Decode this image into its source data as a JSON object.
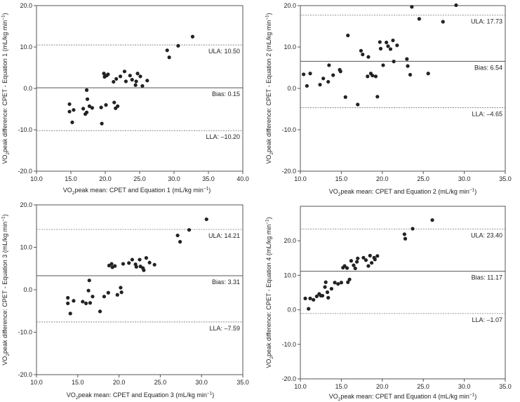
{
  "chart_data": [
    {
      "type": "scatter",
      "xlabel_pre": "VO",
      "xlabel_sub": "2",
      "xlabel_post": "peak mean: CPET and Equation 1 (mL/kg min",
      "xlabel_sup": "−1",
      "xlabel_end": ")",
      "ylabel_pre": "VO",
      "ylabel_sub": "2",
      "ylabel_post": "peak difference: CPET - Equation 1 (mL/kg min",
      "ylabel_sup": "−1",
      "ylabel_end": ")",
      "xlim": [
        10,
        40
      ],
      "ylim": [
        -20,
        20
      ],
      "x_ticks": [
        "10.0",
        "15.0",
        "20.0",
        "25.0",
        "30.0",
        "35.0",
        "40.0"
      ],
      "y_ticks": [
        "20.0",
        "10.0",
        "0.0",
        "-10.0",
        "-20.0"
      ],
      "ula": {
        "label": "ULA: 10.50",
        "value": 10.5
      },
      "bias": {
        "label": "Bias: 0.15",
        "value": 0.15
      },
      "lla": {
        "label": "LLA: –10.20",
        "value": -10.2
      },
      "points": [
        [
          14.8,
          -3.8
        ],
        [
          14.8,
          -5.6
        ],
        [
          15.2,
          -8.2
        ],
        [
          15.4,
          -5.2
        ],
        [
          16.8,
          -4.9
        ],
        [
          17.1,
          -6.2
        ],
        [
          17.3,
          -5.8
        ],
        [
          17.3,
          -0.4
        ],
        [
          17.4,
          -2.6
        ],
        [
          17.7,
          -4.3
        ],
        [
          18.1,
          -4.7
        ],
        [
          19.4,
          -4.6
        ],
        [
          19.5,
          -8.5
        ],
        [
          19.8,
          3.6
        ],
        [
          19.9,
          2.8
        ],
        [
          20.1,
          -4.0
        ],
        [
          20.2,
          3.1
        ],
        [
          20.4,
          3.4
        ],
        [
          21.2,
          1.6
        ],
        [
          21.3,
          -3.4
        ],
        [
          21.5,
          -4.8
        ],
        [
          21.6,
          2.3
        ],
        [
          21.8,
          -4.3
        ],
        [
          22.2,
          2.9
        ],
        [
          22.8,
          4.1
        ],
        [
          23.0,
          1.7
        ],
        [
          23.6,
          3.1
        ],
        [
          23.9,
          2.1
        ],
        [
          24.4,
          0.8
        ],
        [
          24.5,
          1.7
        ],
        [
          24.7,
          3.6
        ],
        [
          25.1,
          2.9
        ],
        [
          25.4,
          0.6
        ],
        [
          26.1,
          1.9
        ],
        [
          29.0,
          9.2
        ],
        [
          29.3,
          7.5
        ],
        [
          30.6,
          10.3
        ],
        [
          32.7,
          12.5
        ]
      ]
    },
    {
      "type": "scatter",
      "xlabel_pre": "VO",
      "xlabel_sub": "2",
      "xlabel_post": "peak mean: CPET and Equation 2 (mL/kg min",
      "xlabel_sup": "−1",
      "xlabel_end": ")",
      "ylabel_pre": "VO",
      "ylabel_sub": "2",
      "ylabel_post": "peak difference: CPET - Equation 2 (mL/kg min",
      "ylabel_sup": "−1",
      "ylabel_end": ")",
      "xlim": [
        10,
        35
      ],
      "ylim": [
        -20,
        20
      ],
      "x_ticks": [
        "10.0",
        "15.0",
        "20.0",
        "25.0",
        "30.0",
        "35.0"
      ],
      "y_ticks": [
        "20.0",
        "10.0",
        "0.0",
        "-10.0",
        "-20.0"
      ],
      "ula": {
        "label": "ULA: 17.73",
        "value": 17.73
      },
      "bias": {
        "label": "Bias: 6.54",
        "value": 6.54
      },
      "lla": {
        "label": "LLA: –4.65",
        "value": -4.65
      },
      "points": [
        [
          10.4,
          3.4
        ],
        [
          10.8,
          0.6
        ],
        [
          11.2,
          3.6
        ],
        [
          12.4,
          0.9
        ],
        [
          12.8,
          2.4
        ],
        [
          13.4,
          1.6
        ],
        [
          13.5,
          5.6
        ],
        [
          14.0,
          3.2
        ],
        [
          14.8,
          4.5
        ],
        [
          14.9,
          4.1
        ],
        [
          15.5,
          -2.1
        ],
        [
          15.8,
          12.8
        ],
        [
          17.0,
          -3.9
        ],
        [
          17.4,
          9.1
        ],
        [
          17.6,
          8.2
        ],
        [
          18.2,
          2.9
        ],
        [
          18.3,
          7.6
        ],
        [
          18.6,
          3.6
        ],
        [
          18.8,
          3.1
        ],
        [
          19.2,
          2.9
        ],
        [
          19.4,
          -2.0
        ],
        [
          19.7,
          11.2
        ],
        [
          19.8,
          9.6
        ],
        [
          20.1,
          5.6
        ],
        [
          20.5,
          11.1
        ],
        [
          20.7,
          10.2
        ],
        [
          21.0,
          9.5
        ],
        [
          21.3,
          11.6
        ],
        [
          21.4,
          6.5
        ],
        [
          21.8,
          10.4
        ],
        [
          23.0,
          7.1
        ],
        [
          23.1,
          5.4
        ],
        [
          23.4,
          3.3
        ],
        [
          23.6,
          19.7
        ],
        [
          24.5,
          16.8
        ],
        [
          25.6,
          3.6
        ],
        [
          27.4,
          16.1
        ],
        [
          29.0,
          20.1
        ]
      ]
    },
    {
      "type": "scatter",
      "xlabel_pre": "VO",
      "xlabel_sub": "2",
      "xlabel_post": "peak mean: CPET and Equation 3 (mL/kg min",
      "xlabel_sup": "−1",
      "xlabel_end": ")",
      "ylabel_pre": "VO",
      "ylabel_sub": "2",
      "ylabel_post": "peak difference: CPET - Equation 3 (mL/kg min",
      "ylabel_sup": "−1",
      "ylabel_end": ")",
      "xlim": [
        10,
        35
      ],
      "ylim": [
        -20,
        20
      ],
      "x_ticks": [
        "10.0",
        "15.0",
        "20.0",
        "25.0",
        "30.0",
        "35.0"
      ],
      "y_ticks": [
        "20.0",
        "10.0",
        "0.0",
        "-10.0",
        "-20.0"
      ],
      "ula": {
        "label": "ULA: 14.21",
        "value": 14.21
      },
      "bias": {
        "label": "Bias: 3.31",
        "value": 3.31
      },
      "lla": {
        "label": "LLA: –7.59",
        "value": -7.59
      },
      "points": [
        [
          13.8,
          -1.9
        ],
        [
          13.8,
          -3.2
        ],
        [
          14.1,
          -5.6
        ],
        [
          14.5,
          -2.6
        ],
        [
          15.6,
          -2.8
        ],
        [
          16.0,
          -3.2
        ],
        [
          16.3,
          -0.2
        ],
        [
          16.4,
          2.2
        ],
        [
          16.5,
          -3.1
        ],
        [
          16.8,
          -1.6
        ],
        [
          17.7,
          -5.1
        ],
        [
          18.2,
          -1.6
        ],
        [
          18.7,
          -0.7
        ],
        [
          18.8,
          5.7
        ],
        [
          19.1,
          6.1
        ],
        [
          19.2,
          5.3
        ],
        [
          19.5,
          5.6
        ],
        [
          19.8,
          -1.2
        ],
        [
          20.2,
          0.5
        ],
        [
          20.3,
          -0.6
        ],
        [
          20.5,
          6.1
        ],
        [
          21.2,
          6.3
        ],
        [
          21.6,
          7.1
        ],
        [
          22.0,
          6.0
        ],
        [
          22.1,
          5.4
        ],
        [
          22.5,
          7.1
        ],
        [
          22.6,
          5.5
        ],
        [
          22.9,
          5.1
        ],
        [
          23.0,
          4.6
        ],
        [
          23.3,
          7.5
        ],
        [
          23.7,
          6.4
        ],
        [
          24.3,
          5.9
        ],
        [
          27.1,
          12.8
        ],
        [
          27.4,
          11.3
        ],
        [
          28.5,
          14.1
        ],
        [
          30.6,
          16.6
        ]
      ]
    },
    {
      "type": "scatter",
      "xlabel_pre": "VO",
      "xlabel_sub": "2",
      "xlabel_post": "peak mean: CPET and Equation 4 (mL/kg min",
      "xlabel_sup": "−1",
      "xlabel_end": ")",
      "ylabel_pre": "VO",
      "ylabel_sub": "2",
      "ylabel_post": "peak difference: CPET - Equation 4 (mL/kg min",
      "ylabel_sup": "−1",
      "ylabel_end": ")",
      "xlim": [
        10,
        35
      ],
      "ylim": [
        -20,
        30
      ],
      "x_ticks": [
        "10.0",
        "15.0",
        "20.0",
        "25.0",
        "30.0",
        "35.0"
      ],
      "y_ticks": [
        "20.0",
        "10.0",
        "0.0",
        "-10.0",
        "-20.0"
      ],
      "ula": {
        "label": "ULA: 23.40",
        "value": 23.4
      },
      "bias": {
        "label": "Bias: 11.17",
        "value": 11.17
      },
      "lla": {
        "label": "LLA: –1.07",
        "value": -1.07
      },
      "points": [
        [
          10.6,
          3.3
        ],
        [
          11.0,
          0.3
        ],
        [
          11.2,
          3.3
        ],
        [
          11.6,
          2.9
        ],
        [
          12.0,
          3.9
        ],
        [
          12.3,
          4.6
        ],
        [
          12.5,
          4.1
        ],
        [
          12.7,
          4.1
        ],
        [
          13.0,
          6.6
        ],
        [
          13.1,
          8.0
        ],
        [
          13.3,
          5.1
        ],
        [
          13.4,
          3.5
        ],
        [
          13.8,
          6.1
        ],
        [
          14.2,
          7.9
        ],
        [
          14.6,
          7.5
        ],
        [
          15.0,
          7.9
        ],
        [
          15.2,
          12.2
        ],
        [
          15.4,
          12.7
        ],
        [
          15.7,
          12.1
        ],
        [
          15.8,
          8.0
        ],
        [
          16.0,
          8.8
        ],
        [
          16.2,
          14.2
        ],
        [
          16.5,
          12.9
        ],
        [
          16.7,
          12.0
        ],
        [
          16.9,
          13.9
        ],
        [
          17.0,
          14.9
        ],
        [
          17.7,
          15.1
        ],
        [
          18.0,
          14.4
        ],
        [
          18.3,
          12.7
        ],
        [
          18.5,
          15.7
        ],
        [
          18.7,
          13.6
        ],
        [
          19.0,
          15.1
        ],
        [
          19.1,
          14.6
        ],
        [
          19.4,
          15.6
        ],
        [
          22.7,
          21.9
        ],
        [
          22.8,
          20.6
        ],
        [
          23.7,
          23.5
        ],
        [
          26.1,
          26.0
        ]
      ]
    }
  ]
}
